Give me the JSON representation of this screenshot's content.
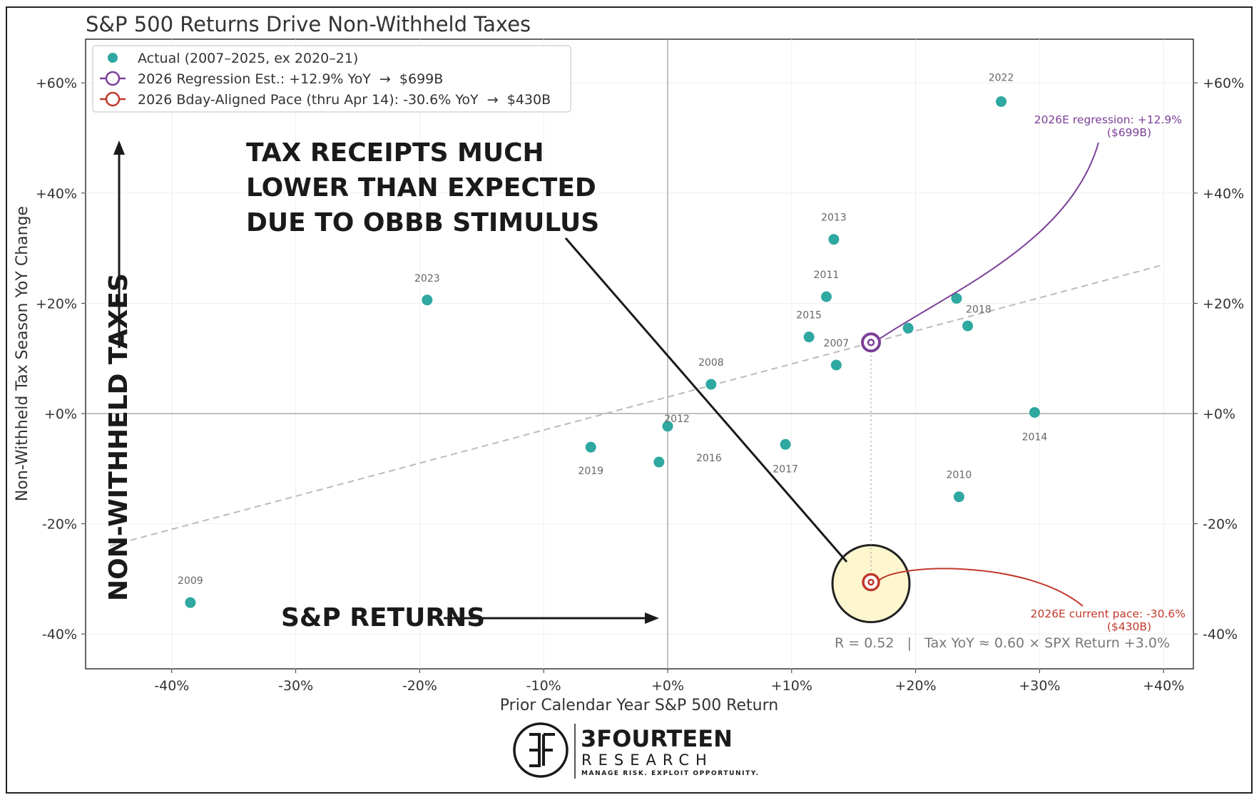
{
  "chart_data": {
    "type": "scatter",
    "title": "S&P 500 Returns Drive Non-Withheld Taxes",
    "xlabel": "Prior Calendar Year S&P 500 Return",
    "ylabel": "Non-Withheld Tax Season YoY Change",
    "xlim": [
      -47,
      42
    ],
    "ylim": [
      -46,
      68
    ],
    "xticks": [
      -40,
      -30,
      -20,
      -10,
      0,
      10,
      20,
      30,
      40
    ],
    "xtick_labels": [
      "-40%",
      "-30%",
      "-20%",
      "-10%",
      "+0%",
      "+10%",
      "+20%",
      "+30%",
      "+40%"
    ],
    "yticks": [
      -40,
      -20,
      0,
      20,
      40,
      60
    ],
    "ytick_labels": [
      "-40%",
      "-20%",
      "+0%",
      "+20%",
      "+40%",
      "+60%"
    ],
    "grid": true,
    "legend_position": "top-left",
    "series": [
      {
        "name": "Actual (2007–2025, ex 2020–21)",
        "color": "#2ea8a0",
        "points": [
          {
            "year": "2022",
            "x": 26.9,
            "y": 56.6,
            "labeled": true
          },
          {
            "year": "2013",
            "x": 13.4,
            "y": 31.6,
            "labeled": true
          },
          {
            "year": "2023",
            "x": -19.4,
            "y": 20.6,
            "labeled": true
          },
          {
            "year": "2011",
            "x": 12.8,
            "y": 21.2,
            "labeled": true
          },
          {
            "year": "2018",
            "x": 23.3,
            "y": 20.9,
            "labeled": true
          },
          {
            "year": "2015",
            "x": 11.4,
            "y": 13.9,
            "labeled": true
          },
          {
            "year": "2007",
            "x": 13.6,
            "y": 8.8,
            "labeled": true
          },
          {
            "year": "2008",
            "x": 3.5,
            "y": 5.3,
            "labeled": true
          },
          {
            "year": "2019",
            "x": -6.2,
            "y": -6.1,
            "labeled": true
          },
          {
            "year": "2012",
            "x": 0.0,
            "y": -2.3,
            "labeled": true
          },
          {
            "year": "2016",
            "x": -0.7,
            "y": -8.8,
            "labeled": true
          },
          {
            "year": "2017",
            "x": 9.5,
            "y": -5.6,
            "labeled": true
          },
          {
            "year": "2014",
            "x": 29.6,
            "y": 0.2,
            "labeled": true
          },
          {
            "year": "2010",
            "x": 23.5,
            "y": -15.1,
            "labeled": true
          },
          {
            "year": "2009",
            "x": -38.5,
            "y": -34.3,
            "labeled": true
          },
          {
            "year": "",
            "x": 19.4,
            "y": 15.5,
            "labeled": false
          },
          {
            "year": "",
            "x": 24.2,
            "y": 15.9,
            "labeled": false
          }
        ]
      },
      {
        "name": "2026 Regression Est.: +12.9% YoY  →  $699B",
        "color": "#7b3f98",
        "points": [
          {
            "x": 16.4,
            "y": 12.9
          }
        ]
      },
      {
        "name": "2026 Bday-Aligned Pace (thru Apr 14): -30.6% YoY  →  $430B",
        "color": "#c0392b",
        "points": [
          {
            "x": 16.4,
            "y": -30.6
          }
        ]
      }
    ],
    "regression": {
      "slope": 0.6,
      "intercept": 3.0,
      "x_range": [
        -45,
        40
      ],
      "style": "dashed",
      "color": "#bbbbbb"
    },
    "annotations": {
      "regression_label": [
        "2026E regression: +12.9%",
        "($699B)"
      ],
      "pace_label": [
        "2026E current pace: -30.6%",
        "($430B)"
      ],
      "stats_text": "R = 0.52   |   Tax YoY ≈ 0.60 × SPX Return +3.0%",
      "callout": [
        "TAX RECEIPTS MUCH",
        "LOWER THAN EXPECTED",
        "DUE TO OBBB STIMULUS"
      ],
      "x_arrow_label": "S&P RETURNS",
      "y_arrow_label": "NON-WITHHELD TAXES"
    }
  },
  "logo": {
    "name": "3FOURTEEN",
    "sub": "RESEARCH",
    "tagline": "MANAGE RISK. EXPLOIT OPPORTUNITY."
  },
  "colors": {
    "actual": "#2ea8a0",
    "regression": "#7b3f98",
    "pace": "#c0392b",
    "highlight_fill": "#fdf6cf"
  }
}
